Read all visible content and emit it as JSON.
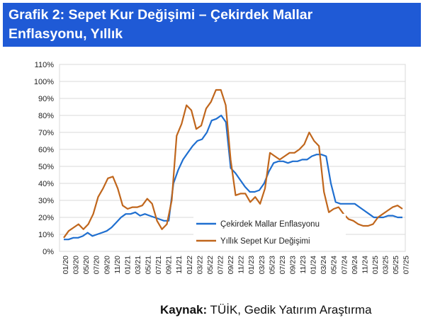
{
  "header": {
    "prefix": "Grafik 2:",
    "title_line1": "Sepet Kur Değişimi – Çekirdek Mallar",
    "title_line2": "Enflasyonu, Yıllık"
  },
  "source": {
    "label": "Kaynak:",
    "text": " TÜİK, Gedik Yatırım Araştırma"
  },
  "colors": {
    "header_bg": "#1f5ad6",
    "series_blue": "#1f6fd0",
    "series_orange": "#c0661c",
    "grid": "#d9d9d9"
  },
  "chart_data": {
    "type": "line",
    "ylim": [
      0,
      110
    ],
    "yticks": [
      "0%",
      "10%",
      "20%",
      "30%",
      "40%",
      "50%",
      "60%",
      "70%",
      "80%",
      "90%",
      "100%",
      "110%"
    ],
    "xticks": [
      "01/20",
      "03/20",
      "05/20",
      "07/20",
      "09/20",
      "11/20",
      "01/21",
      "03/21",
      "05/21",
      "07/21",
      "09/21",
      "11/21",
      "01/22",
      "03/22",
      "05/22",
      "07/22",
      "09/22",
      "11/22",
      "01/23",
      "03/23",
      "05/23",
      "07/23",
      "09/23",
      "11/23",
      "01/24",
      "03/24",
      "05/24",
      "07/24",
      "09/24",
      "11/24",
      "01/25",
      "03/25",
      "05/25",
      "07/25"
    ],
    "legend_position": "center-right",
    "grid": true,
    "series": [
      {
        "name": "Çekirdek Mallar Enflasyonu",
        "color": "#1f6fd0",
        "values": [
          7,
          7,
          8,
          8,
          9,
          11,
          9,
          10,
          11,
          12,
          14,
          17,
          20,
          22,
          22,
          23,
          21,
          22,
          21,
          20,
          19,
          18,
          18,
          40,
          48,
          54,
          58,
          62,
          65,
          66,
          70,
          77,
          78,
          80,
          76,
          49,
          46,
          42,
          38,
          35,
          35,
          36,
          40,
          47,
          52,
          53,
          53,
          52,
          53,
          53,
          54,
          54,
          56,
          57,
          57,
          56,
          40,
          29,
          28,
          28,
          28,
          28,
          26,
          24,
          22,
          20,
          20,
          20,
          21,
          21,
          20,
          20
        ]
      },
      {
        "name": "Yıllık Sepet Kur Değişimi",
        "color": "#c0661c",
        "values": [
          8,
          12,
          14,
          16,
          13,
          16,
          22,
          32,
          37,
          43,
          44,
          37,
          27,
          25,
          26,
          26,
          27,
          31,
          28,
          18,
          13,
          16,
          30,
          68,
          75,
          86,
          83,
          72,
          74,
          84,
          88,
          95,
          95,
          86,
          54,
          33,
          34,
          34,
          29,
          32,
          28,
          37,
          58,
          56,
          54,
          56,
          58,
          58,
          60,
          63,
          70,
          65,
          62,
          35,
          23,
          25,
          26,
          22,
          19,
          18,
          16,
          15,
          15,
          16,
          20,
          22,
          24,
          26,
          27,
          25
        ]
      }
    ]
  }
}
